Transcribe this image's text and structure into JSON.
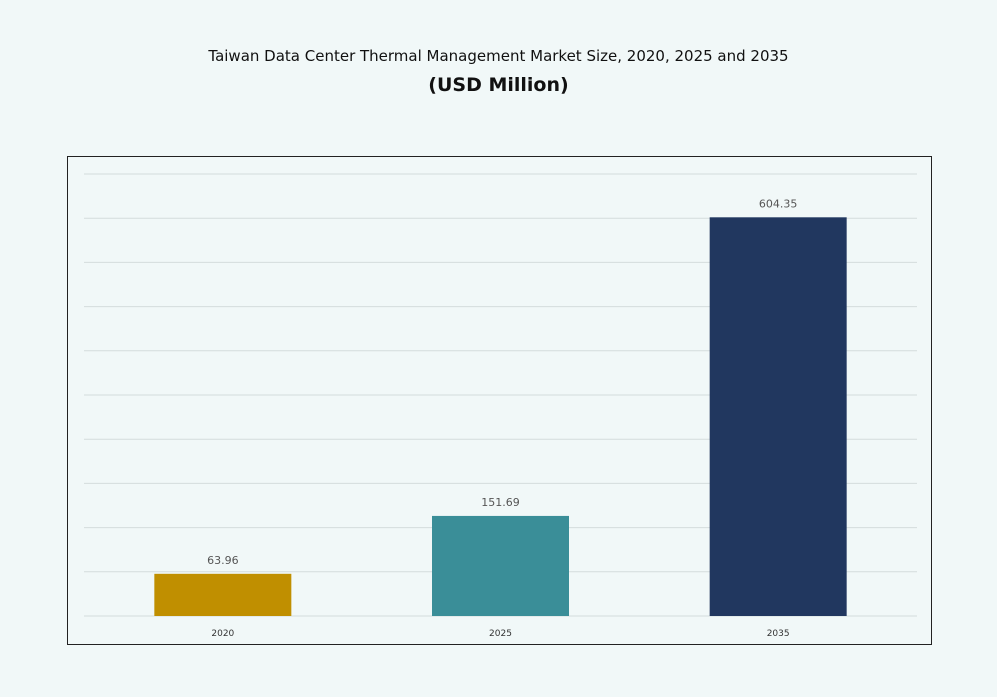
{
  "chart_data": {
    "type": "bar",
    "title": "Taiwan Data Center Thermal Management Market Size, 2020, 2025 and 2035",
    "subtitle": "(USD Million)",
    "categories": [
      "2020",
      "2025",
      "2035"
    ],
    "values": [
      63.96,
      151.69,
      604.35
    ],
    "data_labels": [
      "63.96",
      "151.69",
      "604.35"
    ],
    "colors": [
      "#c08f00",
      "#3a8e98",
      "#21375f"
    ],
    "xlabel": "",
    "ylabel": "",
    "ylim": [
      0,
      670
    ],
    "grid": true,
    "y_axis_labels_shown": false,
    "legend": "none"
  }
}
